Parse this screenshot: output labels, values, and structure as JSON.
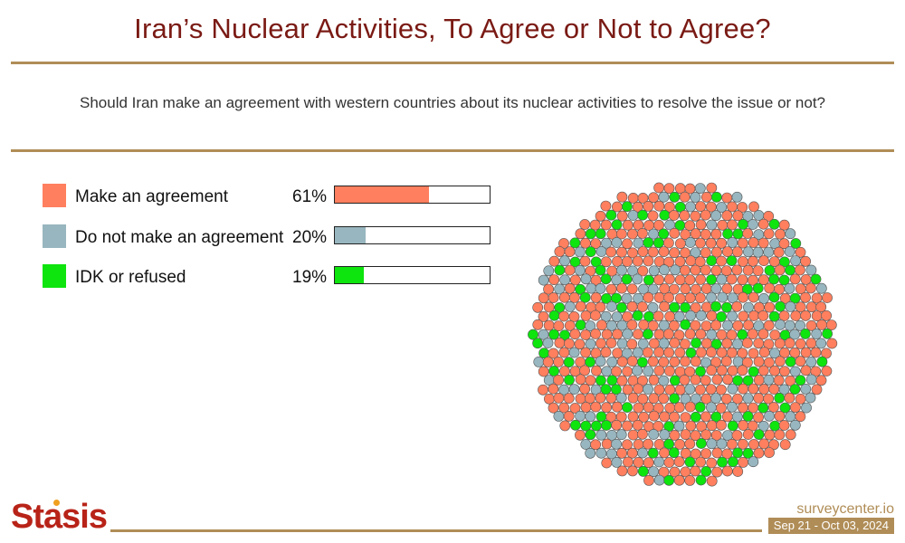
{
  "header": {
    "title": "Iran’s Nuclear Activities, To Agree or Not to Agree?",
    "question": "Should Iran make an agreement with western countries about its nuclear activities to resolve the issue or not?"
  },
  "footer": {
    "brand": "Stasis",
    "site": "surveycenter.io",
    "date_range": "Sep 21 - Oct 03, 2024"
  },
  "chart_data": {
    "type": "bar",
    "categories": [
      "Make an agreement",
      "Do not make an agreement",
      "IDK or refused"
    ],
    "values": [
      61,
      20,
      19
    ],
    "value_labels": [
      "61%",
      "20%",
      "19%"
    ],
    "colors": [
      "#ff7f5e",
      "#98b6bf",
      "#0ee40e"
    ],
    "unit": "%",
    "ylim": [
      0,
      100
    ],
    "bubble_plot": true
  }
}
